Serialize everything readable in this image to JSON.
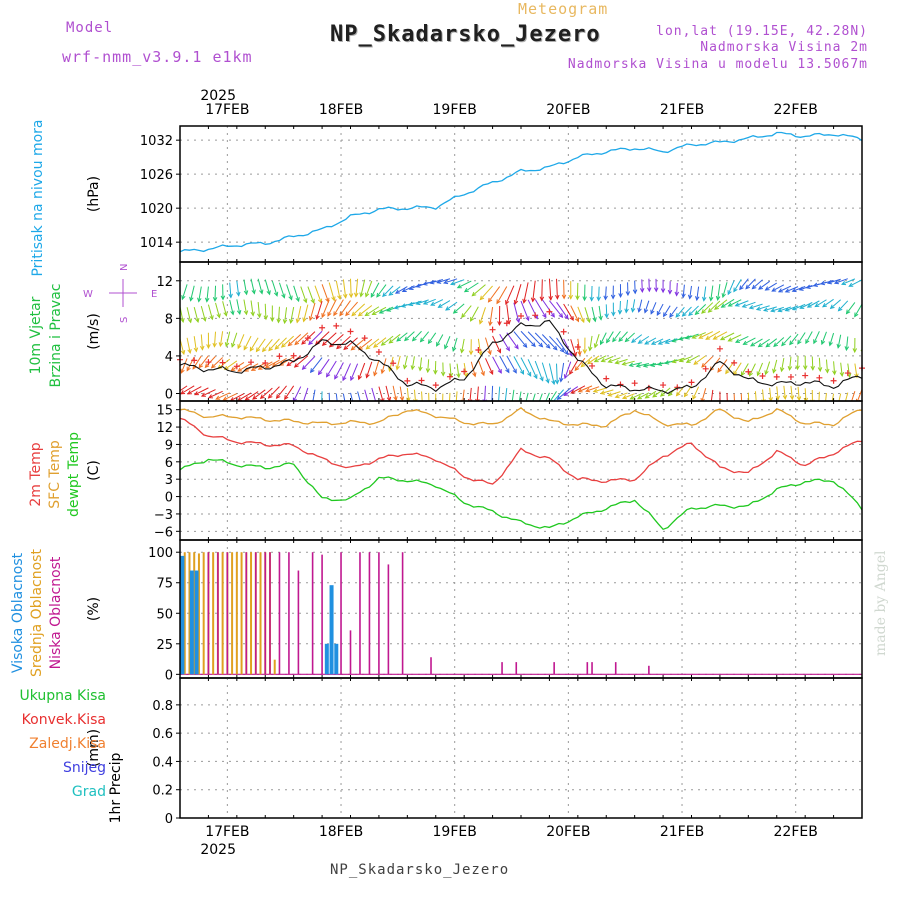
{
  "header": {
    "model_label": "Model",
    "model_name": "wrf-nmm_v3.9.1 e1km",
    "subtitle": "Meteogram",
    "title": "NP_Skadarsko_Jezero",
    "coords": "lon,lat (19.15E, 42.28N)",
    "elevation": "Nadmorska Visina 2m",
    "model_elevation": "Nadmorska Visina u modelu 13.5067m",
    "footer_title": "NP_Skadarsko_Jezero",
    "signature": "made by Angel"
  },
  "colors": {
    "pressure": "#1ea8e8",
    "temp": "#e84040",
    "sfc_temp": "#e0a030",
    "dewpt": "#20c820",
    "high_cloud": "#2090e0",
    "mid_cloud": "#e0a020",
    "low_cloud": "#c01890",
    "wind_speed": "#101010",
    "gust": "#e83030",
    "compass": "#b050d0",
    "rain_total": "#20c030",
    "rain_conv": "#e83030",
    "rain_frozen": "#f08030",
    "snow": "#4040e0",
    "hail": "#20c0c0"
  },
  "chart_data": {
    "type": "line",
    "time_axis": {
      "start": "2025-02-16 14:00",
      "end": "2025-02-22 14:00",
      "top_year": "2025",
      "bottom_year": "2025",
      "tick_labels": [
        "17FEB",
        "18FEB",
        "19FEB",
        "20FEB",
        "21FEB",
        "22FEB"
      ],
      "tick_dates": [
        "2025-02-17",
        "2025-02-18",
        "2025-02-19",
        "2025-02-20",
        "2025-02-21",
        "2025-02-22"
      ]
    },
    "panels": [
      {
        "id": "pressure",
        "ylabel": "Pritisak na nivou mora",
        "unit": "(hPa)",
        "yticks": [
          1014,
          1020,
          1026,
          1032
        ],
        "ylim": [
          1010.5,
          1034.5
        ],
        "series": [
          {
            "color_key": "pressure",
            "x_hours": [
              0,
              6,
              12,
              18,
              24,
              30,
              36,
              42,
              48,
              54,
              60,
              66,
              72,
              78,
              84,
              90,
              96,
              102,
              108,
              114,
              120,
              126,
              132,
              138,
              144
            ],
            "values": [
              1012.3,
              1012.8,
              1013.5,
              1013.8,
              1015.0,
              1016.2,
              1018.5,
              1019.8,
              1020.0,
              1020.2,
              1022.5,
              1024.5,
              1026.5,
              1027.2,
              1029.0,
              1030.0,
              1030.6,
              1030.0,
              1031.2,
              1031.6,
              1032.3,
              1033.2,
              1032.7,
              1033.1,
              1032.2
            ]
          }
        ]
      },
      {
        "id": "wind",
        "ylabel_lines": [
          "10m Vjetar",
          "Brzina i Pravac"
        ],
        "unit": "(m/s)",
        "yticks": [
          0,
          4,
          8,
          12
        ],
        "ylim": [
          -0.8,
          14
        ],
        "compass": {
          "north": "N",
          "south": "S",
          "east": "E",
          "west": "W"
        },
        "series": [
          {
            "name": "speed",
            "color_key": "wind_speed",
            "x_hours": [
              0,
              6,
              12,
              18,
              24,
              30,
              36,
              42,
              48,
              54,
              60,
              66,
              72,
              78,
              84,
              90,
              96,
              102,
              108,
              114,
              120,
              126,
              132,
              138,
              144
            ],
            "values": [
              3.0,
              2.6,
              2.4,
              2.8,
              3.4,
              5.5,
              5.3,
              3.4,
              1.0,
              0.6,
              1.6,
              5.3,
              7.2,
              7.6,
              3.6,
              0.8,
              0.5,
              0.3,
              0.6,
              3.3,
              1.4,
              1.0,
              1.2,
              0.8,
              1.9
            ]
          },
          {
            "name": "gust",
            "color_key": "gust",
            "x_hours": [
              0,
              6,
              12,
              18,
              24,
              30,
              36,
              42,
              48,
              54,
              60,
              66,
              72,
              78,
              84,
              90,
              96,
              102,
              108,
              114,
              120,
              126,
              132,
              138,
              144
            ],
            "values": [
              3.6,
              3.4,
              3.0,
              3.4,
              4.2,
              7.2,
              6.8,
              4.6,
              1.5,
              1.0,
              2.4,
              6.8,
              8.2,
              8.6,
              4.8,
              1.4,
              0.9,
              0.7,
              1.0,
              4.6,
              2.2,
              1.7,
              1.9,
              1.4,
              2.8
            ]
          }
        ]
      },
      {
        "id": "temperature",
        "ylabel_lines": [
          "2m Temp",
          "SFC Temp",
          "dewpt Temp"
        ],
        "unit": "(C)",
        "yticks": [
          -6,
          -3,
          0,
          3,
          6,
          9,
          12,
          15
        ],
        "ylim": [
          -7.5,
          16.5
        ],
        "series": [
          {
            "name": "sfc",
            "color_key": "sfc_temp",
            "x_hours": [
              0,
              6,
              12,
              18,
              24,
              30,
              36,
              42,
              48,
              54,
              60,
              66,
              72,
              78,
              84,
              90,
              96,
              102,
              108,
              114,
              120,
              126,
              132,
              138,
              144
            ],
            "values": [
              15.0,
              13.8,
              13.8,
              13.3,
              13.0,
              12.6,
              12.8,
              12.8,
              15.0,
              14.0,
              12.8,
              12.4,
              15.0,
              13.0,
              12.4,
              12.3,
              15.0,
              12.6,
              12.3,
              15.0,
              12.8,
              15.0,
              12.6,
              12.5,
              15.2
            ]
          },
          {
            "name": "t2m",
            "color_key": "temp",
            "x_hours": [
              0,
              6,
              12,
              18,
              24,
              30,
              36,
              42,
              48,
              54,
              60,
              66,
              72,
              78,
              84,
              90,
              96,
              102,
              108,
              114,
              120,
              126,
              132,
              138,
              144
            ],
            "values": [
              13.5,
              10.5,
              9.5,
              9.0,
              8.8,
              6.5,
              4.8,
              6.5,
              7.5,
              6.5,
              3.5,
              2.0,
              8.0,
              6.5,
              3.0,
              2.7,
              3.0,
              7.0,
              9.2,
              5.0,
              4.0,
              7.8,
              5.4,
              7.5,
              9.8
            ]
          },
          {
            "name": "dewpt",
            "color_key": "dewpt",
            "x_hours": [
              0,
              6,
              12,
              18,
              24,
              30,
              36,
              42,
              48,
              54,
              60,
              66,
              72,
              78,
              84,
              90,
              96,
              102,
              108,
              114,
              120,
              126,
              132,
              138,
              144
            ],
            "values": [
              4.6,
              6.5,
              5.5,
              5.0,
              5.6,
              -0.4,
              -0.5,
              3.2,
              2.8,
              2.0,
              -1.0,
              -2.6,
              -4.5,
              -5.5,
              -3.5,
              -2.0,
              -0.5,
              -5.6,
              -2.0,
              -1.6,
              -1.7,
              1.2,
              2.6,
              2.8,
              -2.0
            ]
          }
        ]
      },
      {
        "id": "clouds",
        "ylabel_lines": [
          "Visoka Oblacnost",
          "Srednja Oblacnost",
          "Niska Oblacnost"
        ],
        "unit": "(%)",
        "yticks": [
          0,
          25,
          50,
          75,
          100
        ],
        "ylim": [
          -3,
          110
        ],
        "high_bars": [
          [
            0.5,
            97
          ],
          [
            2.5,
            85
          ],
          [
            3.5,
            85
          ],
          [
            31,
            25
          ],
          [
            32,
            73
          ],
          [
            33,
            25
          ]
        ],
        "mid_bars": [
          [
            1,
            100
          ],
          [
            2,
            100
          ],
          [
            3,
            100
          ],
          [
            4,
            99
          ],
          [
            5,
            100
          ],
          [
            6,
            100
          ],
          [
            7,
            100
          ],
          [
            8,
            100
          ],
          [
            9,
            100
          ],
          [
            10,
            100
          ],
          [
            11,
            100
          ],
          [
            12,
            100
          ],
          [
            13,
            100
          ],
          [
            14,
            100
          ],
          [
            15,
            100
          ],
          [
            16,
            100
          ],
          [
            17,
            100
          ],
          [
            18,
            100
          ],
          [
            19,
            100
          ],
          [
            20,
            12
          ]
        ],
        "low_bars": [
          [
            6,
            100
          ],
          [
            8,
            100
          ],
          [
            10,
            100
          ],
          [
            14,
            100
          ],
          [
            16,
            100
          ],
          [
            18,
            100
          ],
          [
            19,
            100
          ],
          [
            21,
            100
          ],
          [
            23,
            100
          ],
          [
            25,
            85
          ],
          [
            28,
            100
          ],
          [
            30,
            98
          ],
          [
            34,
            100
          ],
          [
            36,
            36
          ],
          [
            38,
            100
          ],
          [
            40,
            100
          ],
          [
            42,
            100
          ],
          [
            44,
            90
          ],
          [
            47,
            100
          ],
          [
            53,
            14
          ],
          [
            68,
            10
          ],
          [
            71,
            10
          ],
          [
            79,
            10
          ],
          [
            86,
            10
          ],
          [
            87,
            10
          ],
          [
            92,
            10
          ],
          [
            99,
            7
          ]
        ]
      },
      {
        "id": "precip",
        "ylabel": "1hr Precip",
        "unit": "(mm)",
        "yticks": [
          0,
          0.2,
          0.4,
          0.6,
          0.8
        ],
        "ylim": [
          0,
          0.99
        ],
        "legend": [
          "Ukupna Kisa",
          "Konvek.Kisa",
          "Zaledj.Kisa",
          "Snijeg",
          "Grad"
        ],
        "legend_color_keys": [
          "rain_total",
          "rain_conv",
          "rain_frozen",
          "snow",
          "hail"
        ],
        "series": []
      }
    ]
  }
}
